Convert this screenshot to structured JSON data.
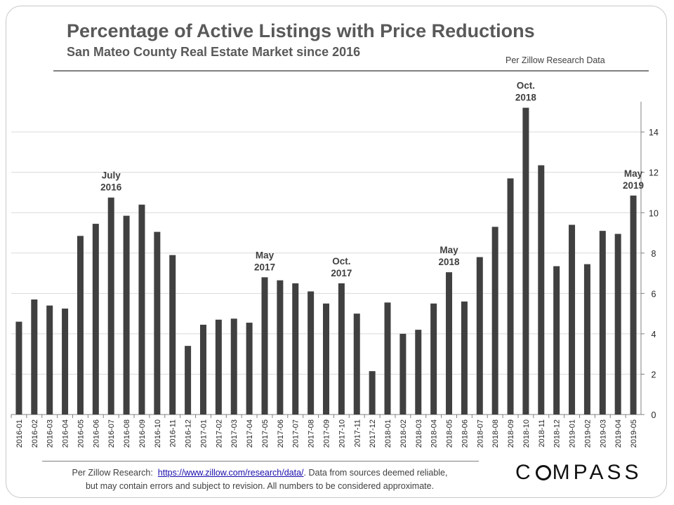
{
  "header": {
    "title": "Percentage of Active Listings with Price Reductions",
    "subtitle": "San Mateo County Real Estate Market since 2016",
    "source_note": "Per Zillow Research Data"
  },
  "footer": {
    "prefix": "Per Zillow Research",
    "colon": ":",
    "link_text": "https://www.zillow.com/research/data/",
    "after_link": ".  Data from sources  deemed reliable,",
    "line2": "but may contain errors and subject to revision.  All numbers to be considered approximate.",
    "logo_left": "C",
    "logo_right": "MPASS"
  },
  "chart_data": {
    "type": "bar",
    "title": "Percentage of Active Listings with Price Reductions",
    "xlabel": "",
    "ylabel": "",
    "y_axis_side": "right",
    "ylim": [
      0,
      15.5
    ],
    "yticks": [
      0,
      2,
      4,
      6,
      8,
      10,
      12,
      14
    ],
    "grid": true,
    "bar_color": "#404040",
    "categories": [
      "2016-01",
      "2016-02",
      "2016-03",
      "2016-04",
      "2016-05",
      "2016-06",
      "2016-07",
      "2016-08",
      "2016-09",
      "2016-10",
      "2016-11",
      "2016-12",
      "2017-01",
      "2017-02",
      "2017-03",
      "2017-04",
      "2017-05",
      "2017-06",
      "2017-07",
      "2017-08",
      "2017-09",
      "2017-10",
      "2017-11",
      "2017-12",
      "2018-01",
      "2018-02",
      "2018-03",
      "2018-04",
      "2018-05",
      "2018-06",
      "2018-07",
      "2018-08",
      "2018-09",
      "2018-10",
      "2018-11",
      "2018-12",
      "2019-01",
      "2019-02",
      "2019-03",
      "2019-04",
      "2019-05"
    ],
    "values": [
      4.6,
      5.7,
      5.4,
      5.25,
      8.85,
      9.45,
      10.75,
      9.85,
      10.4,
      9.05,
      7.9,
      3.4,
      4.45,
      4.7,
      4.75,
      4.55,
      6.8,
      6.65,
      6.5,
      6.1,
      5.5,
      6.5,
      5.0,
      2.15,
      5.55,
      4.0,
      4.2,
      5.5,
      7.05,
      5.6,
      7.8,
      9.3,
      11.7,
      15.2,
      12.35,
      7.35,
      9.4,
      7.45,
      9.1,
      8.95,
      10.85
    ],
    "annotations": [
      {
        "index": 6,
        "lines": [
          "July",
          "2016"
        ]
      },
      {
        "index": 16,
        "lines": [
          "May",
          "2017"
        ]
      },
      {
        "index": 21,
        "lines": [
          "Oct.",
          "2017"
        ]
      },
      {
        "index": 28,
        "lines": [
          "May",
          "2018"
        ]
      },
      {
        "index": 33,
        "lines": [
          "Oct.",
          "2018"
        ]
      },
      {
        "index": 40,
        "lines": [
          "May",
          "2019"
        ]
      }
    ]
  }
}
